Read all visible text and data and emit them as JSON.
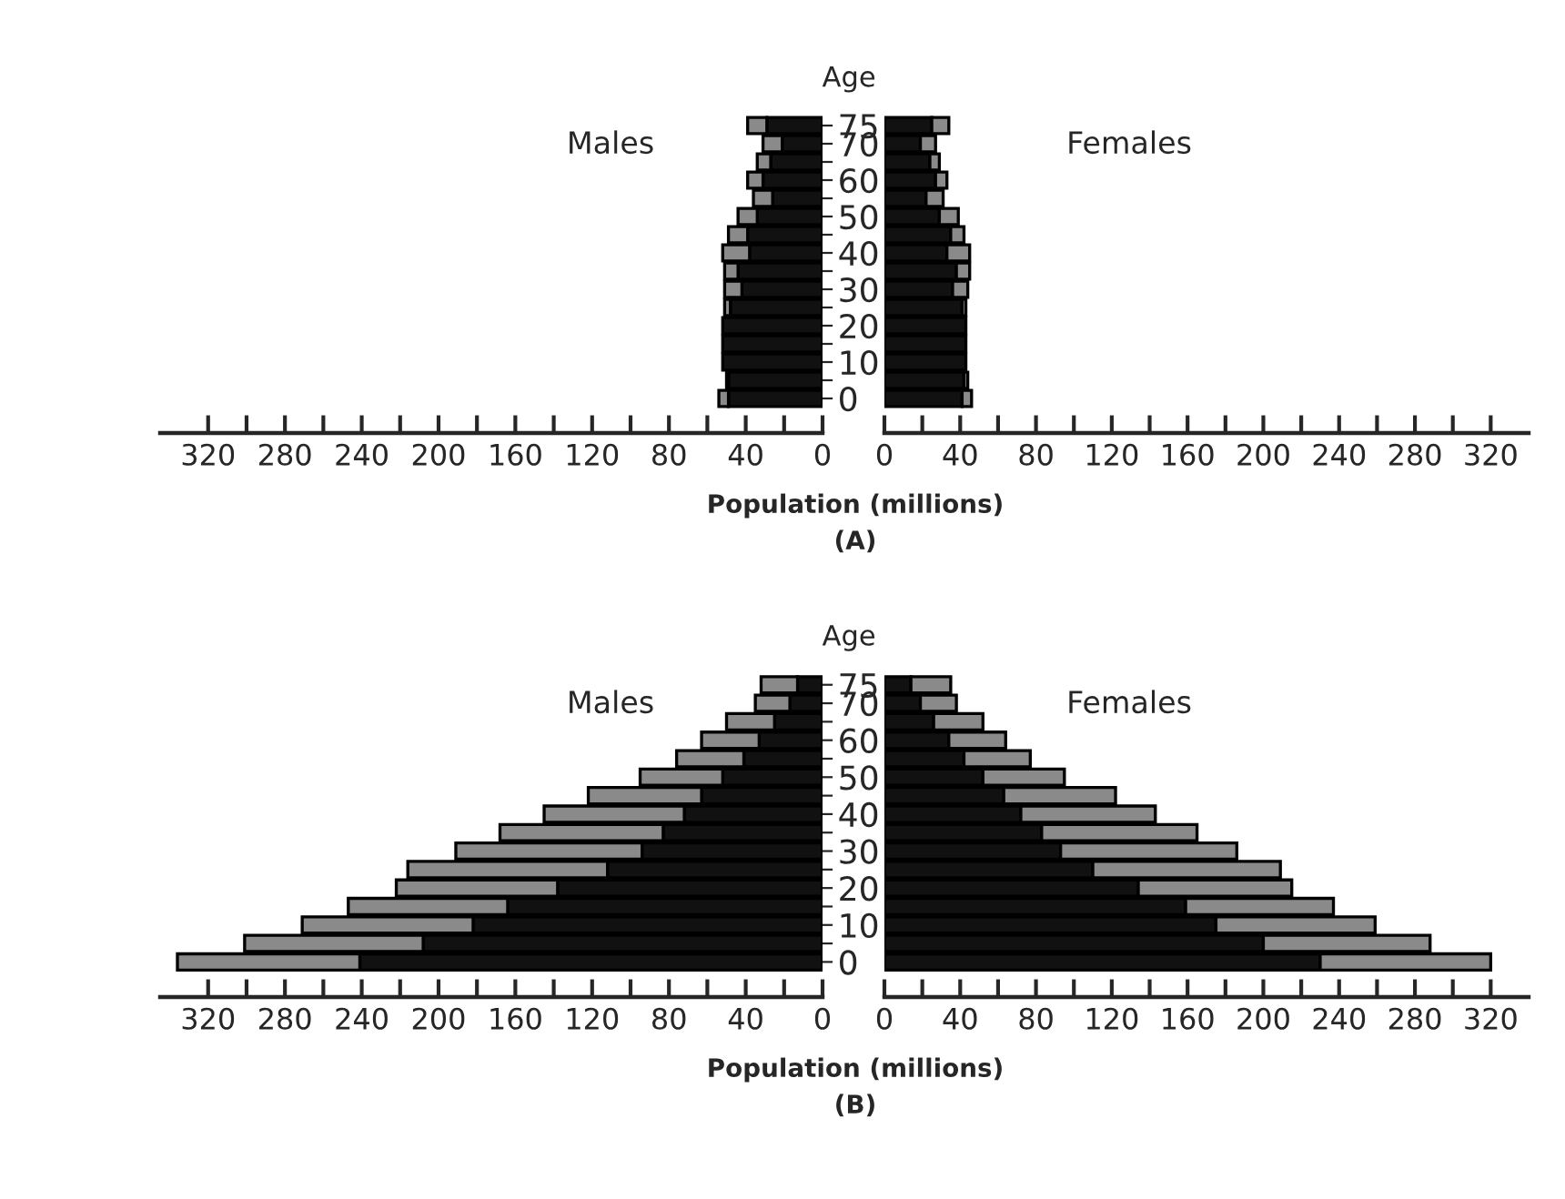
{
  "chart_data": [
    {
      "type": "bar",
      "orientation": "horizontal",
      "stacked": true,
      "title": "Males",
      "ylabel": "Age",
      "xlabel": "Population (millions)",
      "annotations": [
        "(A)"
      ],
      "categories": [
        "75",
        "70",
        null,
        "60",
        null,
        "50",
        null,
        "40",
        null,
        "30",
        null,
        "20",
        null,
        "10",
        null,
        "0"
      ],
      "series": [
        {
          "color": "#111111",
          "values": [
            29,
            21,
            27,
            31,
            26,
            34,
            39,
            38,
            44,
            42,
            48,
            52,
            52,
            52,
            49,
            49
          ]
        },
        {
          "color": "#8a8a8a",
          "values": [
            10,
            10,
            7,
            8,
            10,
            10,
            10,
            14,
            7,
            9,
            3,
            null,
            null,
            null,
            1,
            5
          ]
        }
      ],
      "xlim": [
        345,
        0
      ],
      "xticks": [
        320,
        {
          "value": 300,
          "label": null
        },
        280,
        {
          "value": 260,
          "label": null
        },
        240,
        {
          "value": 220,
          "label": null
        },
        200,
        {
          "value": 180,
          "label": null
        },
        160,
        {
          "value": 140,
          "label": null
        },
        120,
        {
          "value": 100,
          "label": null
        },
        80,
        {
          "value": 60,
          "label": null
        },
        40,
        {
          "value": 20,
          "label": null
        },
        0
      ]
    },
    {
      "type": "bar",
      "orientation": "horizontal",
      "stacked": true,
      "title": "Females",
      "tick_labels": "x",
      "categories": [
        "75",
        "70",
        null,
        "60",
        null,
        "50",
        null,
        "40",
        null,
        "30",
        null,
        "20",
        null,
        "10",
        null,
        "0"
      ],
      "series": [
        {
          "color": "#111111",
          "values": [
            25,
            19,
            24,
            27,
            22,
            29,
            35,
            33,
            38,
            36,
            41,
            43,
            43,
            43,
            42,
            41
          ]
        },
        {
          "color": "#8a8a8a",
          "values": [
            9,
            8,
            5,
            6,
            9,
            10,
            7,
            12,
            7,
            8,
            2,
            null,
            null,
            null,
            2,
            5
          ]
        }
      ],
      "xlim": [
        0,
        340
      ],
      "xticks": [
        0,
        {
          "value": 20,
          "label": null
        },
        40,
        {
          "value": 60,
          "label": null
        },
        80,
        {
          "value": 100,
          "label": null
        },
        120,
        {
          "value": 140,
          "label": null
        },
        160,
        {
          "value": 180,
          "label": null
        },
        200,
        {
          "value": 220,
          "label": null
        },
        240,
        {
          "value": 260,
          "label": null
        },
        280,
        {
          "value": 300,
          "label": null
        },
        320
      ]
    },
    {
      "type": "bar",
      "orientation": "horizontal",
      "stacked": true,
      "title": "Males",
      "ylabel": "Age",
      "xlabel": "Population (millions)",
      "annotations": [
        "(B)"
      ],
      "categories": [
        "75",
        "70",
        null,
        "60",
        null,
        "50",
        null,
        "40",
        null,
        "30",
        null,
        "20",
        null,
        "10",
        null,
        "0"
      ],
      "series": [
        {
          "color": "#111111",
          "values": [
            13,
            17,
            25,
            33,
            41,
            52,
            63,
            72,
            83,
            94,
            112,
            138,
            164,
            182,
            208,
            241
          ]
        },
        {
          "color": "#8a8a8a",
          "values": [
            19,
            18,
            25,
            30,
            35,
            43,
            59,
            73,
            85,
            97,
            104,
            84,
            83,
            89,
            93,
            95
          ]
        }
      ],
      "xlim": [
        345,
        0
      ],
      "xticks": [
        320,
        {
          "value": 300,
          "label": null
        },
        280,
        {
          "value": 260,
          "label": null
        },
        240,
        {
          "value": 220,
          "label": null
        },
        200,
        {
          "value": 180,
          "label": null
        },
        160,
        {
          "value": 140,
          "label": null
        },
        120,
        {
          "value": 100,
          "label": null
        },
        80,
        {
          "value": 60,
          "label": null
        },
        40,
        {
          "value": 20,
          "label": null
        },
        0
      ]
    },
    {
      "type": "bar",
      "orientation": "horizontal",
      "stacked": true,
      "title": "Females",
      "tick_labels": "x",
      "categories": [
        "75",
        "70",
        null,
        "60",
        null,
        "50",
        null,
        "40",
        null,
        "30",
        null,
        "20",
        null,
        "10",
        null,
        "0"
      ],
      "series": [
        {
          "color": "#111111",
          "values": [
            14,
            19,
            26,
            34,
            42,
            52,
            63,
            72,
            83,
            93,
            110,
            134,
            159,
            175,
            200,
            230
          ]
        },
        {
          "color": "#8a8a8a",
          "values": [
            21,
            19,
            26,
            30,
            35,
            43,
            59,
            71,
            82,
            93,
            99,
            81,
            78,
            84,
            88,
            90
          ]
        }
      ],
      "xlim": [
        0,
        340
      ],
      "xticks": [
        0,
        {
          "value": 20,
          "label": null
        },
        40,
        {
          "value": 60,
          "label": null
        },
        80,
        {
          "value": 100,
          "label": null
        },
        120,
        {
          "value": 140,
          "label": null
        },
        160,
        {
          "value": 180,
          "label": null
        },
        200,
        {
          "value": 220,
          "label": null
        },
        240,
        {
          "value": 260,
          "label": null
        },
        280,
        {
          "value": 300,
          "label": null
        },
        320
      ]
    }
  ]
}
